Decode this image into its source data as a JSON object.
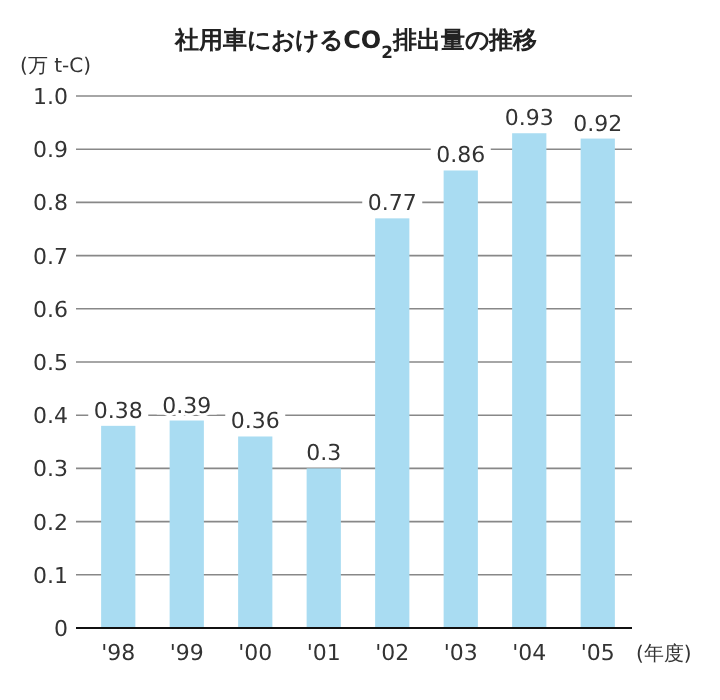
{
  "chart_data": {
    "type": "bar",
    "title": "社用車におけるCO$_{2}$排出量の推移",
    "ylabel": "(万 t-C)",
    "xlabel": "(年度)",
    "categories": [
      "'98",
      "'99",
      "'00",
      "'01",
      "'02",
      "'03",
      "'04",
      "'05"
    ],
    "values": [
      0.38,
      0.39,
      0.36,
      0.3,
      0.77,
      0.86,
      0.93,
      0.92
    ],
    "color": "#a9dcf2",
    "ylim": [
      0,
      1
    ],
    "yticks": [
      0,
      0.1,
      0.2,
      0.3,
      0.4,
      0.5,
      0.6,
      0.7,
      0.8,
      0.9,
      {
        "value": 1,
        "label": "1.0"
      }
    ],
    "grid": "y",
    "data_labels": true
  }
}
